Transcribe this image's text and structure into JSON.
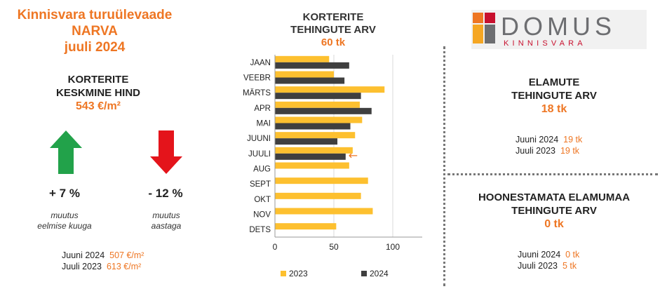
{
  "header": {
    "line1": "Kinnisvara turuülevaade",
    "line2": "NARVA",
    "line3": "juuli 2024"
  },
  "avg_price": {
    "title_line1": "KORTERITE",
    "title_line2": "KESKMINE HIND",
    "value": "543 €/m²"
  },
  "changes": {
    "monthly_pct": "+ 7 %",
    "monthly_label_line1": "muutus",
    "monthly_label_line2": "eelmise kuuga",
    "yearly_pct": "- 12 %",
    "yearly_label_line1": "muutus",
    "yearly_label_line2": "aastaga"
  },
  "avg_price_compare": {
    "row1_label": "Juuni 2024",
    "row1_value": "507 €/m²",
    "row2_label": "Juuli 2023",
    "row2_value": "613 €/m²"
  },
  "chart_title": {
    "line1": "KORTERITE",
    "line2": "TEHINGUTE ARV",
    "value": "60 tk"
  },
  "chart_data": {
    "type": "bar",
    "orientation": "horizontal",
    "categories": [
      "JAAN",
      "VEEBR",
      "MÄRTS",
      "APR",
      "MAI",
      "JUUNI",
      "JUULI",
      "AUG",
      "SEPT",
      "OKT",
      "NOV",
      "DETS"
    ],
    "series": [
      {
        "name": "2023",
        "color": "#FDC02F",
        "values": [
          46,
          50,
          93,
          72,
          74,
          68,
          66,
          63,
          79,
          73,
          83,
          52
        ]
      },
      {
        "name": "2024",
        "color": "#3F3F3F",
        "values": [
          63,
          59,
          73,
          82,
          64,
          53,
          60,
          null,
          null,
          null,
          null,
          null
        ]
      }
    ],
    "xlim": [
      0,
      125
    ],
    "xticks": [
      0,
      50,
      100
    ],
    "grid": "vertical",
    "legend": "bottom",
    "highlight_marker": {
      "category": "JUULI",
      "glyph": "←",
      "color": "#EE7623"
    }
  },
  "logo": {
    "name": "DOMUS",
    "subtitle": "KINNISVARA",
    "colors": [
      "#EE7623",
      "#C8102E",
      "#F5A623",
      "#6D6E71"
    ]
  },
  "houses": {
    "title_line1": "ELAMUTE",
    "title_line2": "TEHINGUTE ARV",
    "value": "18 tk",
    "row1_label": "Juuni 2024",
    "row1_value": "19 tk",
    "row2_label": "Juuli 2023",
    "row2_value": "19 tk"
  },
  "land": {
    "title_line1": "HOONESTAMATA ELAMUMAA",
    "title_line2": "TEHINGUTE ARV",
    "value": "0 tk",
    "row1_label": "Juuni 2024",
    "row1_value": "0 tk",
    "row2_label": "Juuli 2023",
    "row2_value": "5 tk"
  },
  "icons": {
    "up": "arrow-up-icon",
    "down": "arrow-down-icon",
    "up_color": "#22A24A",
    "down_color": "#E4141B"
  }
}
